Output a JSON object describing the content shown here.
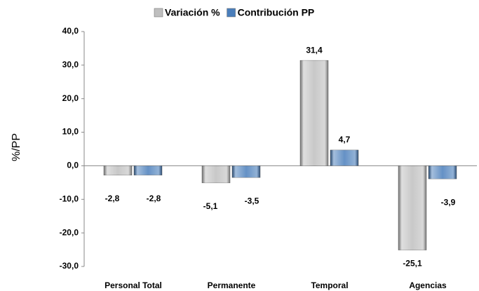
{
  "chart_data": {
    "type": "bar",
    "categories": [
      "Personal Total",
      "Permanente",
      "Temporal",
      "Agencias"
    ],
    "series": [
      {
        "name": "Variación %",
        "color": "#bfbfbf",
        "values": [
          -2.8,
          -5.1,
          31.4,
          -25.1
        ],
        "value_labels": [
          "-2,8",
          "-5,1",
          "31,4",
          "-25,1"
        ]
      },
      {
        "name": "Contribución PP",
        "color": "#4a7ebb",
        "values": [
          -2.8,
          -3.5,
          4.7,
          -3.9
        ],
        "value_labels": [
          "-2,8",
          "-3,5",
          "4,7",
          "-3,9"
        ]
      }
    ],
    "y_label": "%/PP",
    "ylim": [
      -30,
      40
    ],
    "yticks": [
      {
        "value": -30,
        "label": "-30,0"
      },
      {
        "value": -20,
        "label": "-20,0"
      },
      {
        "value": -10,
        "label": "-10,0"
      },
      {
        "value": 0,
        "label": "0,0"
      },
      {
        "value": 10,
        "label": "10,0"
      },
      {
        "value": 20,
        "label": "20,0"
      },
      {
        "value": 30,
        "label": "30,0"
      },
      {
        "value": 40,
        "label": "40,0"
      }
    ],
    "legend": "top"
  }
}
